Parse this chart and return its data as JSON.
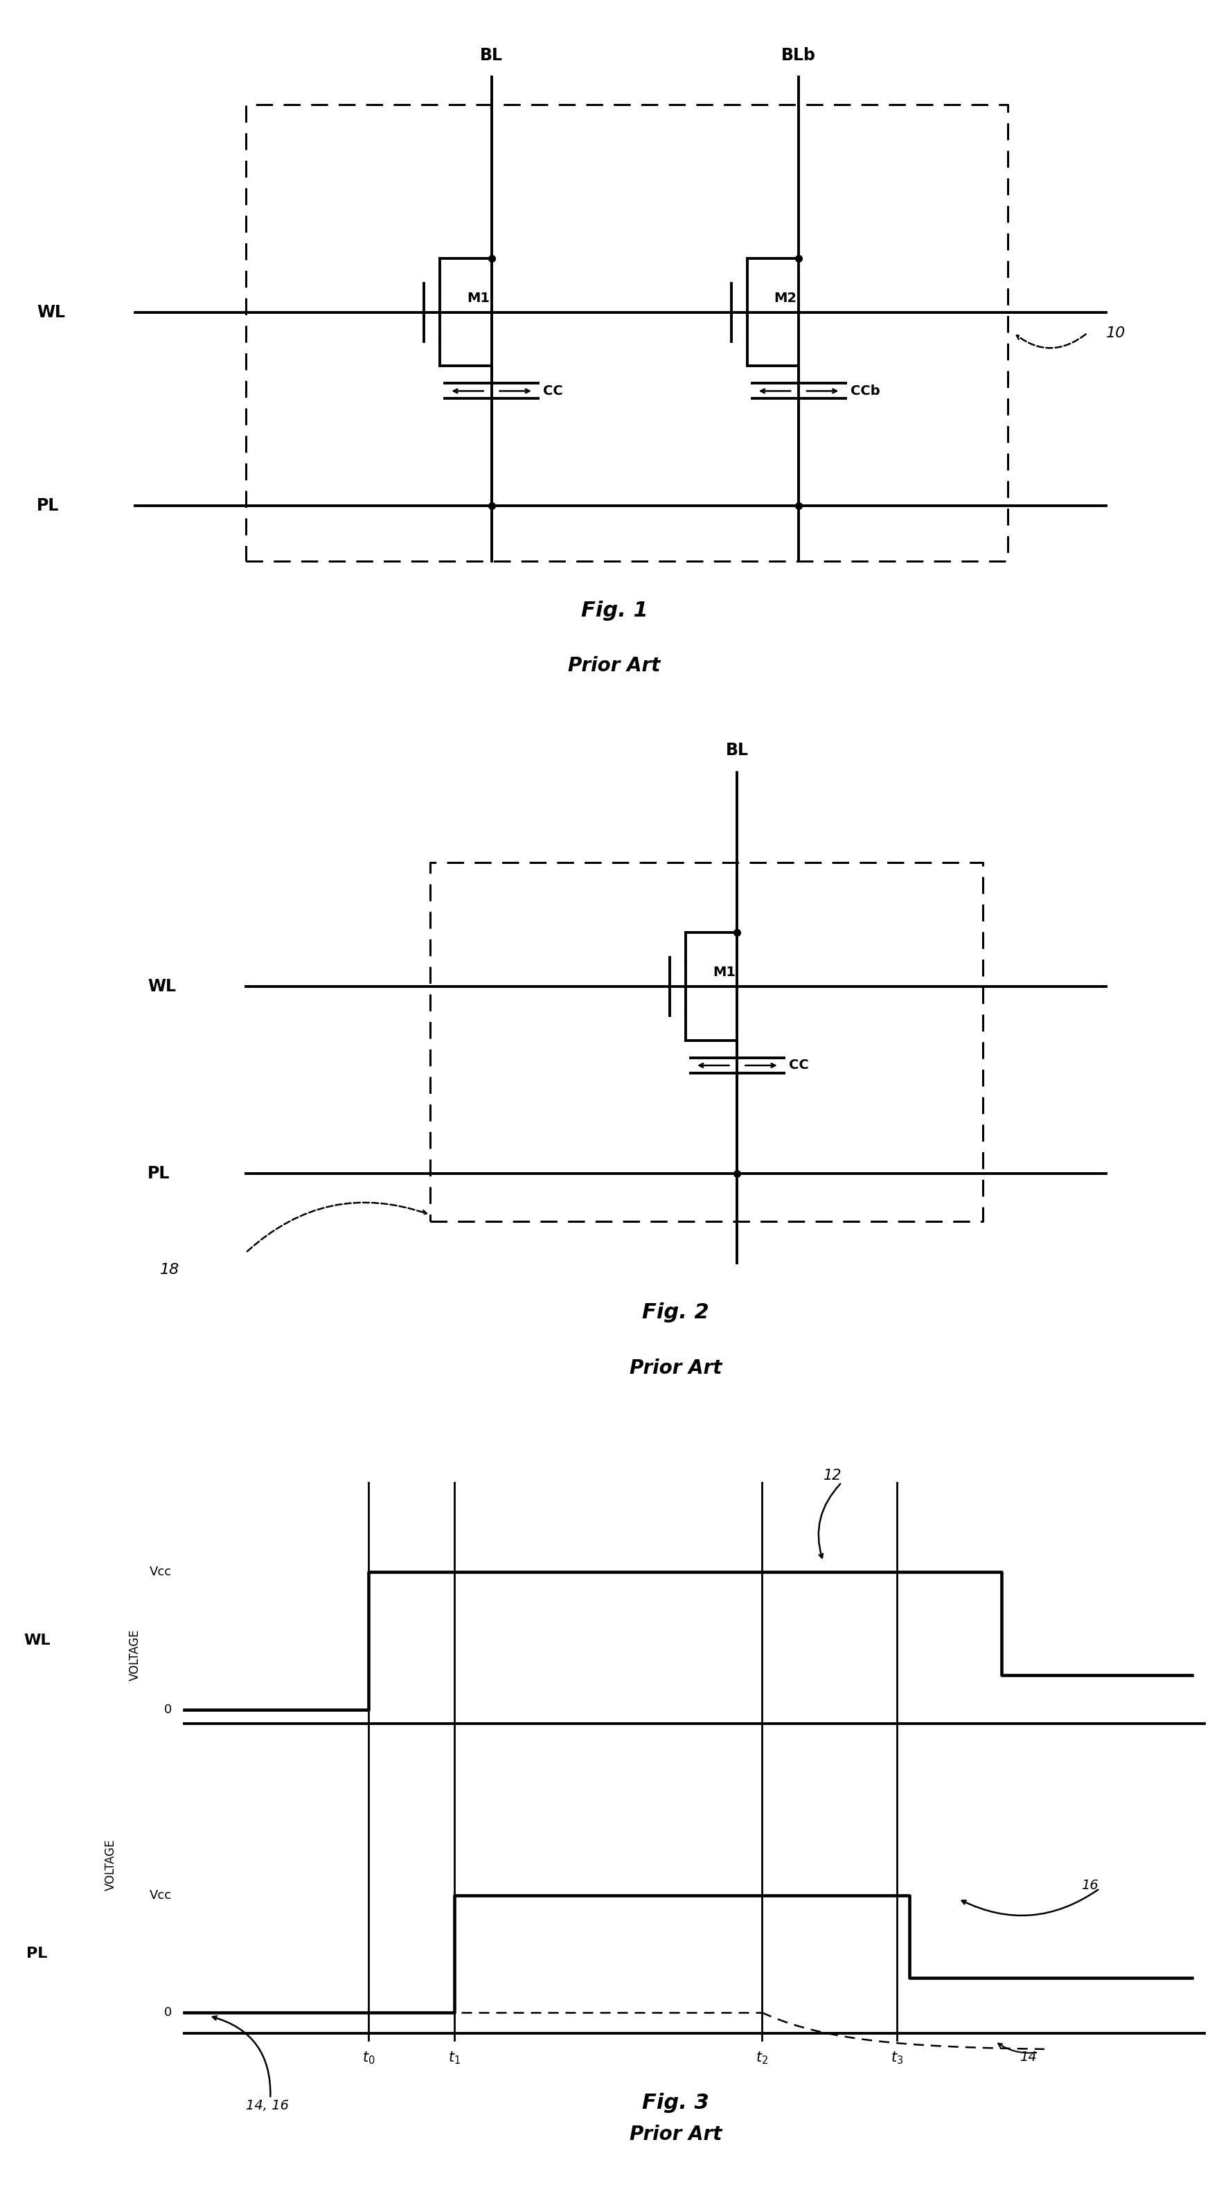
{
  "fig_width": 17.74,
  "fig_height": 31.67,
  "bg_color": "#ffffff",
  "lw": 2.8,
  "lw_thin": 1.8,
  "fig1_title": "Fig. 1",
  "fig1_subtitle": "Prior Art",
  "fig2_title": "Fig. 2",
  "fig2_subtitle": "Prior Art",
  "fig3_title": "Fig. 3",
  "fig3_subtitle": "Prior Art"
}
